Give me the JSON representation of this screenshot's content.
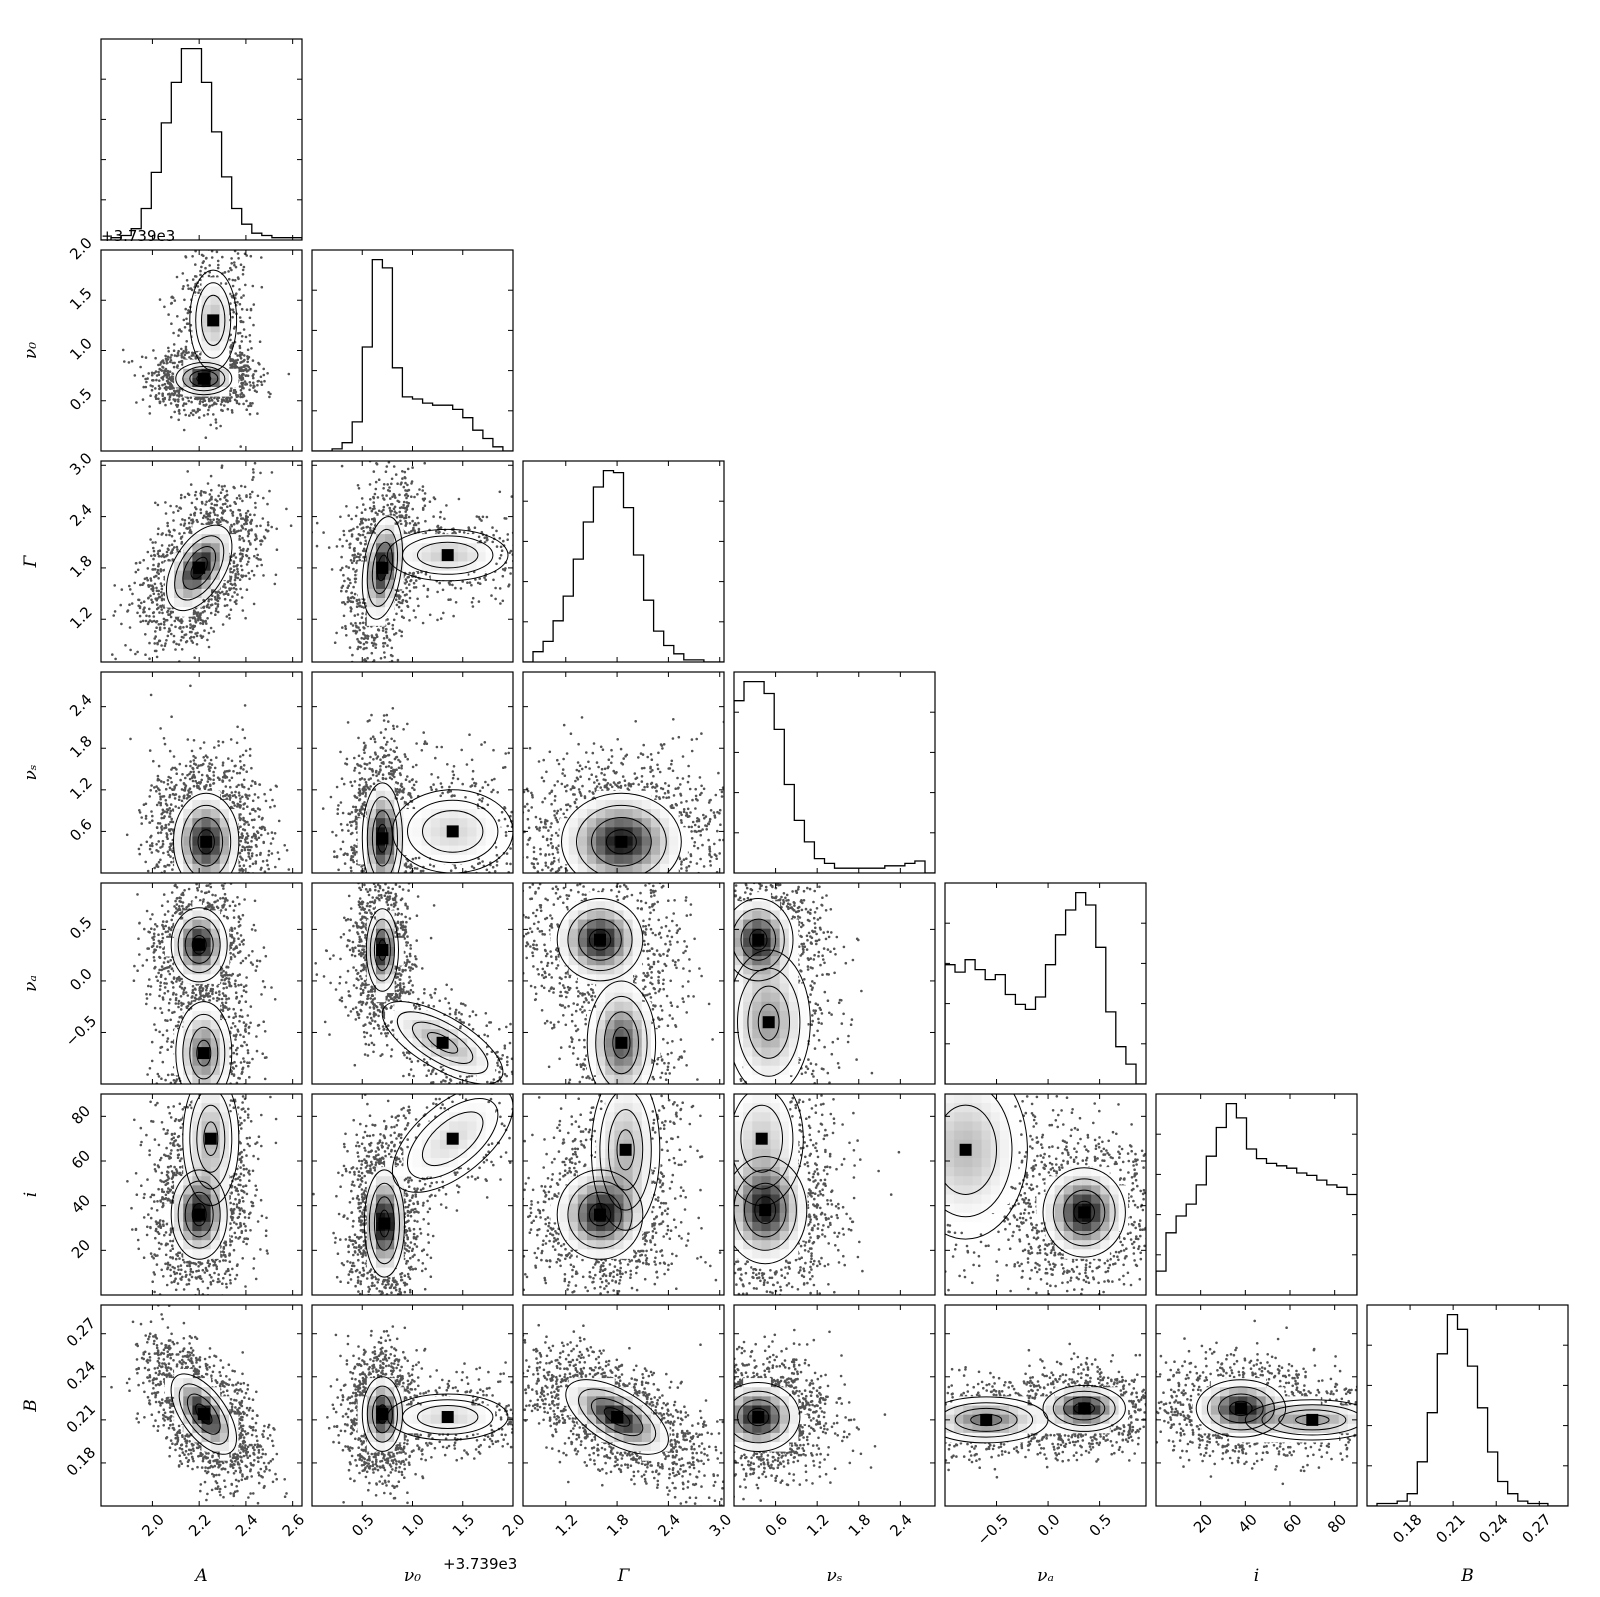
{
  "chart_data": {
    "type": "corner",
    "title": "",
    "offset_label": "+3.739e3",
    "colors": {
      "axis": "#000000",
      "hist": "#000000",
      "density_dark": "#000000",
      "density_light": "#ffffff"
    },
    "params": [
      {
        "key": "A",
        "label": "A",
        "range": [
          1.78,
          2.64
        ],
        "ticks": [
          "2.0",
          "2.2",
          "2.4",
          "2.6"
        ],
        "tick_values": [
          2.0,
          2.2,
          2.4,
          2.6
        ],
        "mean": 2.22,
        "sd": 0.1
      },
      {
        "key": "nu0",
        "label": "ν₀",
        "range": [
          0.0,
          2.0
        ],
        "ticks": [
          "0.5",
          "1.0",
          "1.5",
          "2.0"
        ],
        "tick_values": [
          0.5,
          1.0,
          1.5,
          2.0
        ],
        "mean": 0.75,
        "sd": 0.35
      },
      {
        "key": "Gamma",
        "label": "Γ",
        "range": [
          0.7,
          3.05
        ],
        "ticks": [
          "1.2",
          "1.8",
          "2.4",
          "3.0"
        ],
        "tick_values": [
          1.2,
          1.8,
          2.4,
          3.0
        ],
        "mean": 1.85,
        "sd": 0.35
      },
      {
        "key": "nus",
        "label": "νₛ",
        "range": [
          0.0,
          2.9
        ],
        "ticks": [
          "0.6",
          "1.2",
          "1.8",
          "2.4"
        ],
        "tick_values": [
          0.6,
          1.2,
          1.8,
          2.4
        ],
        "mean": 0.45,
        "sd": 0.35
      },
      {
        "key": "nua",
        "label": "νₐ",
        "range": [
          -1.0,
          0.95
        ],
        "ticks": [
          "−0.5",
          "0.0",
          "0.5"
        ],
        "tick_values": [
          -0.5,
          0.0,
          0.5
        ],
        "mean": 0.1,
        "sd": 0.5
      },
      {
        "key": "i",
        "label": "i",
        "range": [
          0,
          90
        ],
        "ticks": [
          "20",
          "40",
          "60",
          "80"
        ],
        "tick_values": [
          20,
          40,
          60,
          80
        ],
        "mean": 45,
        "sd": 20
      },
      {
        "key": "B",
        "label": "B",
        "range": [
          0.15,
          0.29
        ],
        "ticks": [
          "0.18",
          "0.21",
          "0.24",
          "0.27"
        ],
        "tick_values": [
          0.18,
          0.21,
          0.24,
          0.27
        ],
        "mean": 0.212,
        "sd": 0.016
      }
    ],
    "histograms": [
      {
        "key": "A",
        "counts": [
          0,
          1,
          2,
          5,
          14,
          30,
          52,
          70,
          85,
          85,
          70,
          48,
          28,
          14,
          7,
          3,
          2,
          1,
          1,
          1
        ]
      },
      {
        "key": "nu0",
        "counts": [
          0,
          0,
          1,
          4,
          14,
          50,
          92,
          88,
          40,
          26,
          25,
          23,
          22,
          22,
          20,
          16,
          10,
          6,
          2,
          0
        ]
      },
      {
        "key": "Gamma",
        "counts": [
          0,
          5,
          10,
          20,
          32,
          50,
          68,
          85,
          93,
          92,
          75,
          52,
          30,
          15,
          8,
          4,
          1,
          1,
          0,
          0
        ]
      },
      {
        "key": "nus",
        "counts": [
          72,
          80,
          80,
          75,
          60,
          37,
          22,
          13,
          6,
          4,
          2,
          2,
          2,
          2,
          2,
          3,
          3,
          4,
          5,
          0
        ]
      },
      {
        "key": "nua",
        "counts": [
          48,
          45,
          50,
          46,
          42,
          44,
          36,
          32,
          30,
          35,
          48,
          60,
          70,
          77,
          72,
          55,
          29,
          15,
          8,
          0
        ]
      },
      {
        "key": "i",
        "counts": [
          10,
          26,
          33,
          38,
          46,
          58,
          70,
          80,
          74,
          61,
          57,
          55,
          54,
          53,
          51,
          50,
          48,
          46,
          45,
          42
        ]
      },
      {
        "key": "B",
        "counts": [
          0,
          1,
          1,
          2,
          5,
          18,
          38,
          62,
          78,
          72,
          57,
          40,
          22,
          10,
          5,
          2,
          1,
          1,
          0,
          0
        ]
      }
    ],
    "density_pairs": [
      {
        "x": "A",
        "y": "nu0",
        "modes": [
          {
            "x": 2.22,
            "y": 0.72,
            "sx": 0.06,
            "sy": 0.08,
            "rho": 0,
            "w": 1
          },
          {
            "x": 2.26,
            "y": 1.3,
            "sx": 0.05,
            "sy": 0.25,
            "rho": 0,
            "w": 0.4
          }
        ]
      },
      {
        "x": "A",
        "y": "Gamma",
        "modes": [
          {
            "x": 2.2,
            "y": 1.8,
            "sx": 0.07,
            "sy": 0.25,
            "rho": 0.5,
            "w": 1
          }
        ]
      },
      {
        "x": "nu0",
        "y": "Gamma",
        "modes": [
          {
            "x": 0.7,
            "y": 1.8,
            "sx": 0.1,
            "sy": 0.3,
            "rho": 0.3,
            "w": 1
          },
          {
            "x": 1.35,
            "y": 1.95,
            "sx": 0.3,
            "sy": 0.15,
            "rho": 0,
            "w": 0.4
          }
        ]
      },
      {
        "x": "A",
        "y": "nus",
        "modes": [
          {
            "x": 2.23,
            "y": 0.45,
            "sx": 0.07,
            "sy": 0.35,
            "rho": 0,
            "w": 1
          }
        ]
      },
      {
        "x": "nu0",
        "y": "nus",
        "modes": [
          {
            "x": 0.7,
            "y": 0.5,
            "sx": 0.1,
            "sy": 0.4,
            "rho": 0,
            "w": 1
          },
          {
            "x": 1.4,
            "y": 0.6,
            "sx": 0.3,
            "sy": 0.3,
            "rho": 0,
            "w": 0.35
          }
        ]
      },
      {
        "x": "Gamma",
        "y": "nus",
        "modes": [
          {
            "x": 1.85,
            "y": 0.45,
            "sx": 0.35,
            "sy": 0.35,
            "rho": 0,
            "w": 1
          }
        ]
      },
      {
        "x": "A",
        "y": "nua",
        "modes": [
          {
            "x": 2.2,
            "y": 0.35,
            "sx": 0.06,
            "sy": 0.18,
            "rho": 0,
            "w": 1
          },
          {
            "x": 2.22,
            "y": -0.7,
            "sx": 0.06,
            "sy": 0.25,
            "rho": 0,
            "w": 0.7
          }
        ]
      },
      {
        "x": "nu0",
        "y": "nua",
        "modes": [
          {
            "x": 0.7,
            "y": 0.3,
            "sx": 0.08,
            "sy": 0.2,
            "rho": 0,
            "w": 1
          },
          {
            "x": 1.3,
            "y": -0.6,
            "sx": 0.3,
            "sy": 0.2,
            "rho": -0.7,
            "w": 0.5
          }
        ]
      },
      {
        "x": "Gamma",
        "y": "nua",
        "modes": [
          {
            "x": 1.6,
            "y": 0.4,
            "sx": 0.25,
            "sy": 0.2,
            "rho": 0,
            "w": 1
          },
          {
            "x": 1.85,
            "y": -0.6,
            "sx": 0.2,
            "sy": 0.3,
            "rho": 0,
            "w": 0.8
          }
        ]
      },
      {
        "x": "nus",
        "y": "nua",
        "modes": [
          {
            "x": 0.35,
            "y": 0.4,
            "sx": 0.25,
            "sy": 0.2,
            "rho": 0,
            "w": 1
          },
          {
            "x": 0.5,
            "y": -0.4,
            "sx": 0.3,
            "sy": 0.35,
            "rho": 0,
            "w": 0.6
          }
        ]
      },
      {
        "x": "A",
        "y": "i",
        "modes": [
          {
            "x": 2.2,
            "y": 36,
            "sx": 0.06,
            "sy": 10,
            "rho": 0,
            "w": 1
          },
          {
            "x": 2.25,
            "y": 70,
            "sx": 0.06,
            "sy": 15,
            "rho": 0,
            "w": 0.5
          }
        ]
      },
      {
        "x": "nu0",
        "y": "i",
        "modes": [
          {
            "x": 0.72,
            "y": 32,
            "sx": 0.1,
            "sy": 12,
            "rho": 0,
            "w": 1
          },
          {
            "x": 1.4,
            "y": 70,
            "sx": 0.3,
            "sy": 12,
            "rho": 0.6,
            "w": 0.3
          }
        ]
      },
      {
        "x": "Gamma",
        "y": "i",
        "modes": [
          {
            "x": 1.6,
            "y": 36,
            "sx": 0.25,
            "sy": 10,
            "rho": 0,
            "w": 1
          },
          {
            "x": 1.9,
            "y": 65,
            "sx": 0.2,
            "sy": 18,
            "rho": 0,
            "w": 0.5
          }
        ]
      },
      {
        "x": "nus",
        "y": "i",
        "modes": [
          {
            "x": 0.45,
            "y": 38,
            "sx": 0.3,
            "sy": 12,
            "rho": 0,
            "w": 1
          },
          {
            "x": 0.4,
            "y": 70,
            "sx": 0.3,
            "sy": 15,
            "rho": 0,
            "w": 0.4
          }
        ]
      },
      {
        "x": "nua",
        "y": "i",
        "modes": [
          {
            "x": 0.35,
            "y": 37,
            "sx": 0.2,
            "sy": 10,
            "rho": 0,
            "w": 1
          },
          {
            "x": -0.8,
            "y": 65,
            "sx": 0.3,
            "sy": 20,
            "rho": 0,
            "w": 0.45
          }
        ]
      },
      {
        "x": "A",
        "y": "B",
        "modes": [
          {
            "x": 2.22,
            "y": 0.214,
            "sx": 0.07,
            "sy": 0.014,
            "rho": -0.6,
            "w": 1
          }
        ]
      },
      {
        "x": "nu0",
        "y": "B",
        "modes": [
          {
            "x": 0.7,
            "y": 0.214,
            "sx": 0.1,
            "sy": 0.013,
            "rho": 0,
            "w": 1
          },
          {
            "x": 1.35,
            "y": 0.212,
            "sx": 0.3,
            "sy": 0.008,
            "rho": 0,
            "w": 0.35
          }
        ]
      },
      {
        "x": "Gamma",
        "y": "B",
        "modes": [
          {
            "x": 1.8,
            "y": 0.212,
            "sx": 0.3,
            "sy": 0.013,
            "rho": -0.6,
            "w": 1
          }
        ]
      },
      {
        "x": "nus",
        "y": "B",
        "modes": [
          {
            "x": 0.35,
            "y": 0.212,
            "sx": 0.3,
            "sy": 0.012,
            "rho": 0,
            "w": 1
          }
        ]
      },
      {
        "x": "nua",
        "y": "B",
        "modes": [
          {
            "x": 0.35,
            "y": 0.218,
            "sx": 0.2,
            "sy": 0.008,
            "rho": 0,
            "w": 1
          },
          {
            "x": -0.6,
            "y": 0.21,
            "sx": 0.3,
            "sy": 0.008,
            "rho": 0,
            "w": 0.7
          }
        ]
      },
      {
        "x": "i",
        "y": "B",
        "modes": [
          {
            "x": 38,
            "y": 0.218,
            "sx": 10,
            "sy": 0.01,
            "rho": 0,
            "w": 1
          },
          {
            "x": 70,
            "y": 0.21,
            "sx": 15,
            "sy": 0.007,
            "rho": 0,
            "w": 0.6
          }
        ]
      }
    ]
  }
}
